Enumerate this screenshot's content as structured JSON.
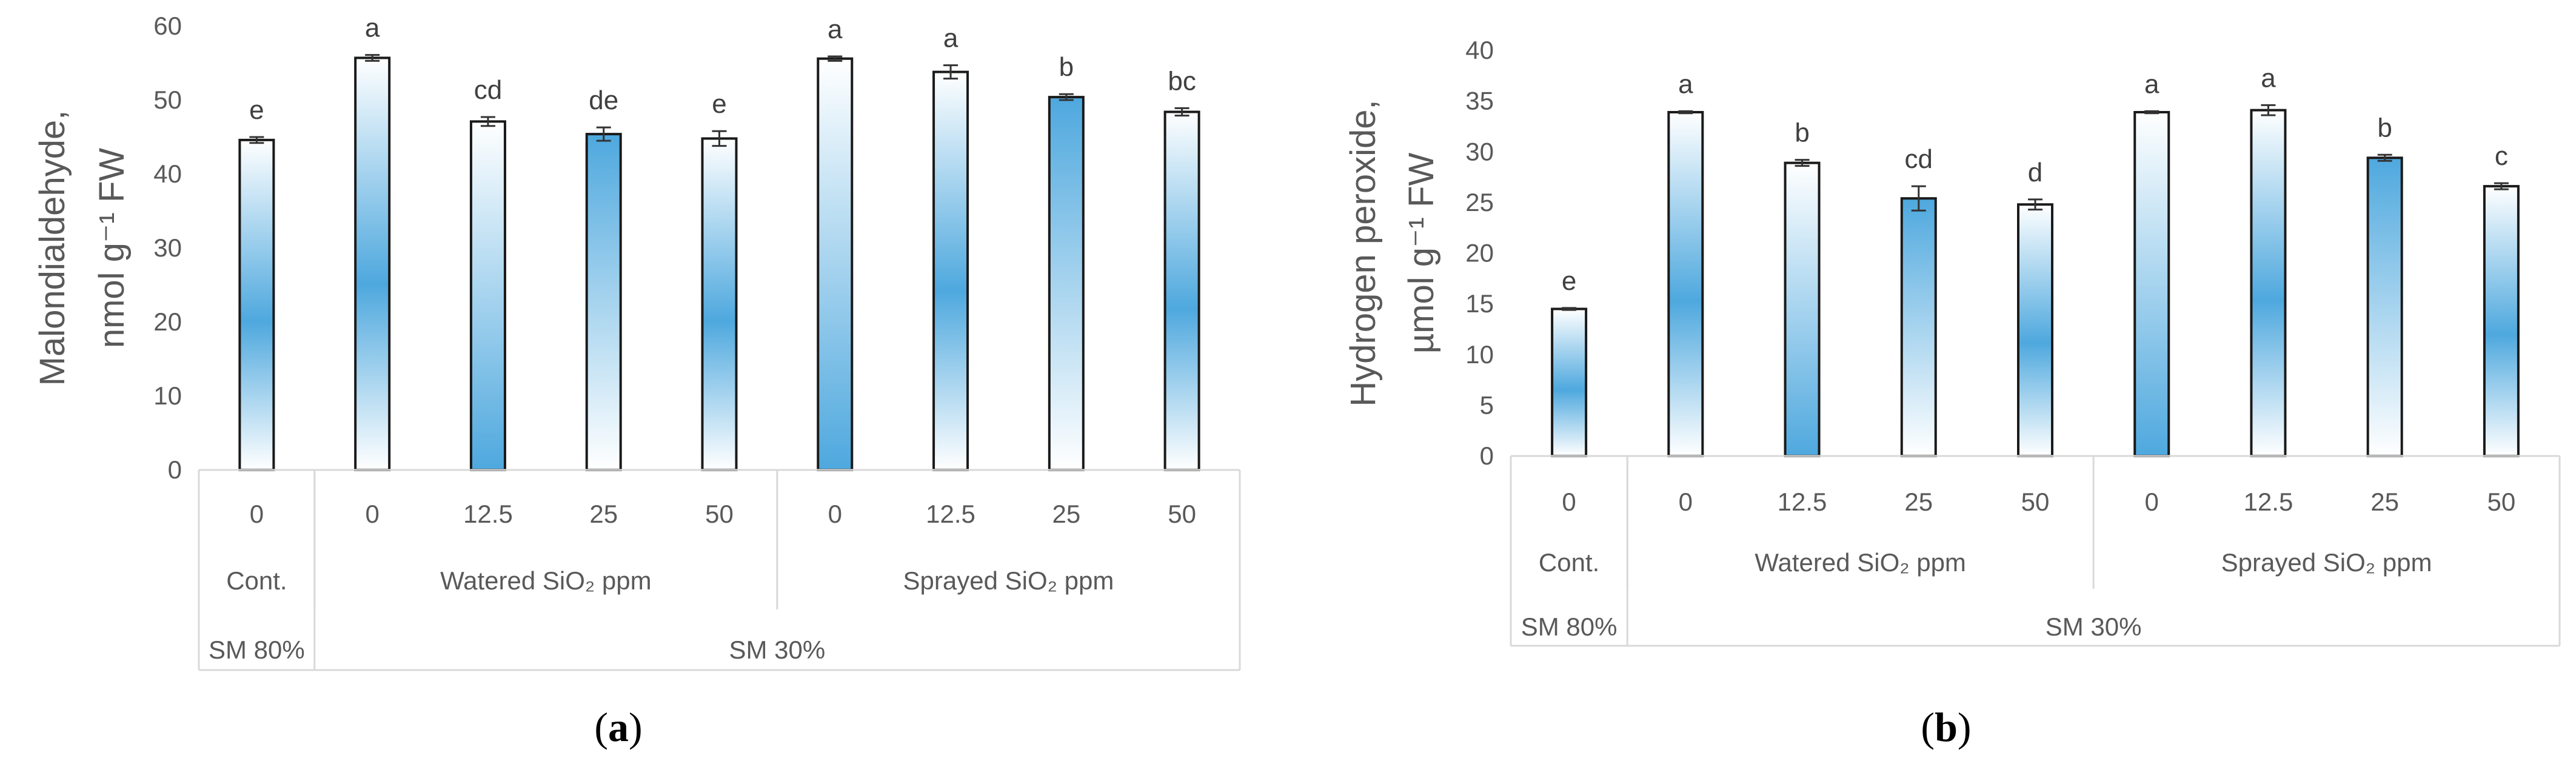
{
  "chart_data": [
    {
      "type": "bar",
      "panel_label": "a",
      "ylabel_line1": "Malondialdehyde,",
      "ylabel_line2": "nmol g⁻¹ FW",
      "ylim": [
        0,
        60
      ],
      "yticks": [
        "0",
        "10",
        "20",
        "30",
        "40",
        "50",
        "60"
      ],
      "categories": [
        "0",
        "0",
        "12.5",
        "25",
        "50",
        "0",
        "12.5",
        "25",
        "50"
      ],
      "values": [
        44.6,
        55.7,
        47.1,
        45.4,
        44.8,
        55.6,
        53.8,
        50.4,
        48.4
      ],
      "errors": [
        0.4,
        0.4,
        0.6,
        0.9,
        1.0,
        0.3,
        0.9,
        0.4,
        0.5
      ],
      "significance": [
        "e",
        "a",
        "cd",
        "de",
        "e",
        "a",
        "a",
        "b",
        "bc"
      ],
      "groups_level2": [
        {
          "label": "Cont.",
          "span": [
            0,
            0
          ]
        },
        {
          "label": "Watered SiO₂ ppm",
          "span": [
            1,
            4
          ]
        },
        {
          "label": "Sprayed SiO₂ ppm",
          "span": [
            5,
            8
          ]
        }
      ],
      "groups_level3": [
        {
          "label": "SM 80%",
          "span": [
            0,
            0
          ]
        },
        {
          "label": "SM 30%",
          "span": [
            1,
            8
          ]
        }
      ]
    },
    {
      "type": "bar",
      "panel_label": "b",
      "ylabel_line1": "Hydrogen peroxide,",
      "ylabel_line2": "µmol g⁻¹ FW",
      "ylim": [
        0,
        40
      ],
      "yticks": [
        "0",
        "5",
        "10",
        "15",
        "20",
        "25",
        "30",
        "35",
        "40"
      ],
      "categories": [
        "0",
        "0",
        "12.5",
        "25",
        "50",
        "0",
        "12.5",
        "25",
        "50"
      ],
      "values": [
        14.5,
        33.9,
        28.9,
        25.4,
        24.8,
        33.9,
        34.1,
        29.4,
        26.6
      ],
      "errors": [
        0.1,
        0.1,
        0.3,
        1.2,
        0.5,
        0.1,
        0.5,
        0.3,
        0.3
      ],
      "significance": [
        "e",
        "a",
        "b",
        "cd",
        "d",
        "a",
        "a",
        "b",
        "c"
      ],
      "groups_level2": [
        {
          "label": "Cont.",
          "span": [
            0,
            0
          ]
        },
        {
          "label": "Watered SiO₂ ppm",
          "span": [
            1,
            4
          ]
        },
        {
          "label": "Sprayed SiO₂ ppm",
          "span": [
            5,
            8
          ]
        }
      ],
      "groups_level3": [
        {
          "label": "SM 80%",
          "span": [
            0,
            0
          ]
        },
        {
          "label": "SM 30%",
          "span": [
            1,
            8
          ]
        }
      ]
    }
  ],
  "captions": {
    "a": {
      "open": "(",
      "letter": "a",
      "close": ")"
    },
    "b": {
      "open": "(",
      "letter": "b",
      "close": ")"
    }
  },
  "colors": {
    "bar_blue": "#4ea8de",
    "bar_light": "#ffffff",
    "axis": "#d9d9d9",
    "bar_edge": "#1a1a1a"
  }
}
